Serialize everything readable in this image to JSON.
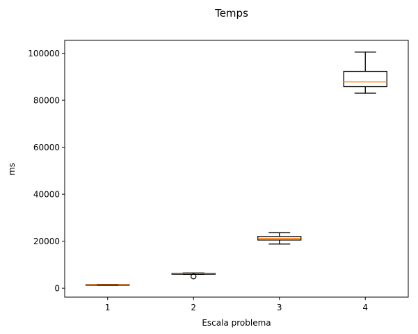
{
  "chart_data": {
    "type": "boxplot",
    "title": "Temps",
    "xlabel": "Escala problema",
    "ylabel": "ms",
    "ylim": [
      -3800,
      105500
    ],
    "xlim": [
      0.5,
      4.5
    ],
    "yticks": [
      0,
      20000,
      40000,
      60000,
      80000,
      100000
    ],
    "grid": false,
    "categories": [
      "1",
      "2",
      "3",
      "4"
    ],
    "boxes": [
      {
        "category": "1",
        "whisker_low": 1200,
        "q1": 1300,
        "median": 1450,
        "q3": 1550,
        "whisker_high": 1650,
        "outliers": []
      },
      {
        "category": "2",
        "whisker_low": 5900,
        "q1": 5950,
        "median": 6150,
        "q3": 6350,
        "whisker_high": 6500,
        "outliers": [
          5000
        ]
      },
      {
        "category": "3",
        "whisker_low": 18800,
        "q1": 20500,
        "median": 21200,
        "q3": 22000,
        "whisker_high": 23600,
        "outliers": []
      },
      {
        "category": "4",
        "whisker_low": 83000,
        "q1": 85800,
        "median": 87800,
        "q3": 92300,
        "whisker_high": 100500,
        "outliers": []
      }
    ],
    "colors": {
      "box": "#000000",
      "median": "#ff7f0e",
      "axes": "#000000"
    }
  }
}
